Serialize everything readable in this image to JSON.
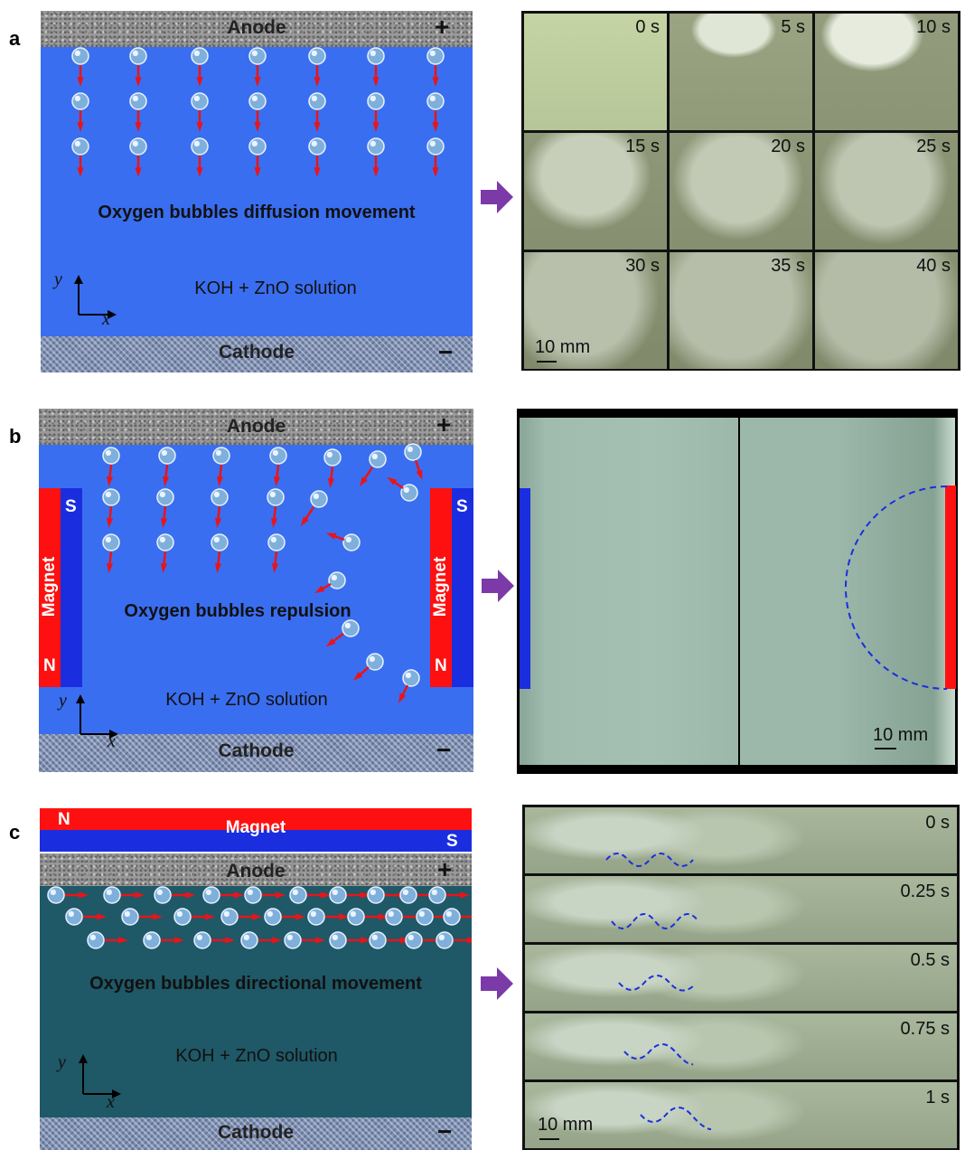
{
  "panels": {
    "a": {
      "letter": "a",
      "anode": "Anode",
      "cathode": "Cathode",
      "plus": "+",
      "minus": "−",
      "caption": "Oxygen bubbles diffusion movement",
      "solution": "KOH + ZnO solution",
      "axis_y": "y",
      "axis_x": "x",
      "times": [
        "0 s",
        "5 s",
        "10 s",
        "15 s",
        "20 s",
        "25 s",
        "30 s",
        "35 s",
        "40 s"
      ],
      "scale": "10 mm",
      "colors": {
        "solution": "#3a6ef0"
      }
    },
    "b": {
      "letter": "b",
      "anode": "Anode",
      "cathode": "Cathode",
      "plus": "+",
      "minus": "−",
      "caption": "Oxygen bubbles repulsion",
      "solution": "KOH + ZnO solution",
      "axis_y": "y",
      "axis_x": "x",
      "magnet_left": {
        "label": "Magnet",
        "top_pole": "S",
        "bottom_pole": "N"
      },
      "magnet_right": {
        "label": "Magnet",
        "top_pole": "S",
        "bottom_pole": "N"
      },
      "scale": "10 mm",
      "colors": {
        "solution": "#3a6ef0",
        "north": "#ff1010",
        "south": "#1a2ee0"
      }
    },
    "c": {
      "letter": "c",
      "magnet": {
        "label": "Magnet",
        "left_pole": "N",
        "right_pole": "S"
      },
      "anode": "Anode",
      "cathode": "Cathode",
      "plus": "+",
      "minus": "−",
      "caption": "Oxygen bubbles directional movement",
      "solution": "KOH + ZnO solution",
      "axis_y": "y",
      "axis_x": "x",
      "times": [
        "0 s",
        "0.25 s",
        "0.5 s",
        "0.75 s",
        "1 s"
      ],
      "scale": "10 mm",
      "colors": {
        "solution": "#1f5866"
      }
    }
  },
  "colors": {
    "arrow": "#e8141a",
    "step_arrow": "#7b3aa8",
    "bubble": "#9cc4e8",
    "dashed": "#1a2ee0"
  }
}
